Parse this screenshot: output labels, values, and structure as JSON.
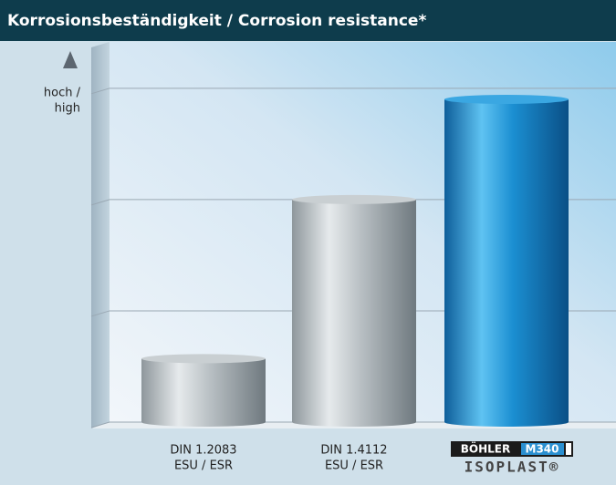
{
  "chart_data": {
    "type": "bar",
    "title": "Korrosionsbeständigkeit / Corrosion resistance*",
    "y_axis_label": [
      "hoch /",
      "high"
    ],
    "categories": [
      [
        "DIN 1.2083",
        "ESU / ESR"
      ],
      [
        "DIN 1.4112",
        "ESU / ESR"
      ],
      [
        "BÖHLER",
        "M340",
        "ISOPLAST®"
      ]
    ],
    "values": [
      0.57,
      2.0,
      2.9
    ],
    "colors": [
      "#a7aeb2",
      "#a7aeb2",
      "#1b8fd2"
    ],
    "ylim": [
      0,
      3.4
    ],
    "yticks": [
      0,
      1,
      2,
      3
    ],
    "grid": true
  }
}
